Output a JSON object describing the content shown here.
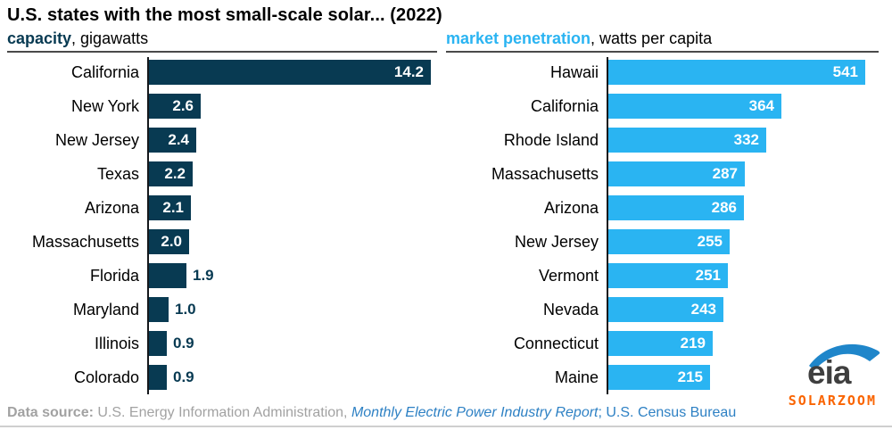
{
  "title": "U.S. states with the most small-scale solar... (2022)",
  "watermark": "SOLARZOOM",
  "logo": {
    "text": "eia"
  },
  "footer": {
    "label": "Data source:",
    "agency": " U.S. Energy Information Administration, ",
    "report_italic": "Monthly Electric Power Industry Report",
    "census": "; U.S. Census Bureau"
  },
  "colors": {
    "navy": "#083a52",
    "light_blue": "#2ab4f2",
    "axis_black": "#15181c",
    "subtitle_underline": "#4a4a4a",
    "footer_gray": "#a2a2a2",
    "footer_blue": "#2e81c4",
    "watermark_orange": "#fa6400",
    "logo_text_gray": "#3f3f3f",
    "logo_swoosh_blue": "#1f86ca"
  },
  "chart_data": [
    {
      "type": "bar",
      "orientation": "horizontal",
      "title": "capacity",
      "unit_label": ", gigawatts",
      "categories": [
        "California",
        "New York",
        "New Jersey",
        "Texas",
        "Arizona",
        "Massachusetts",
        "Florida",
        "Maryland",
        "Illinois",
        "Colorado"
      ],
      "values": [
        14.2,
        2.6,
        2.4,
        2.2,
        2.1,
        2.0,
        1.9,
        1.0,
        0.9,
        0.9
      ],
      "value_labels": [
        "14.2",
        "2.6",
        "2.4",
        "2.2",
        "2.1",
        "2.0",
        "1.9",
        "1.0",
        "0.9",
        "0.9"
      ],
      "xlim": [
        0,
        14.2
      ],
      "bar_color": "#083a52",
      "value_label_color_outside": "#083a52",
      "grid": false,
      "legend": "none"
    },
    {
      "type": "bar",
      "orientation": "horizontal",
      "title": "market penetration",
      "unit_label": ", watts per capita",
      "categories": [
        "Hawaii",
        "California",
        "Rhode Island",
        "Massachusetts",
        "Arizona",
        "New Jersey",
        "Vermont",
        "Nevada",
        "Connecticut",
        "Maine"
      ],
      "values": [
        541,
        364,
        332,
        287,
        286,
        255,
        251,
        243,
        219,
        215
      ],
      "value_labels": [
        "541",
        "364",
        "332",
        "287",
        "286",
        "255",
        "251",
        "243",
        "219",
        "215"
      ],
      "xlim": [
        0,
        541
      ],
      "bar_color": "#2ab4f2",
      "value_label_color_outside": "#2ab4f2",
      "grid": false,
      "legend": "none"
    }
  ]
}
